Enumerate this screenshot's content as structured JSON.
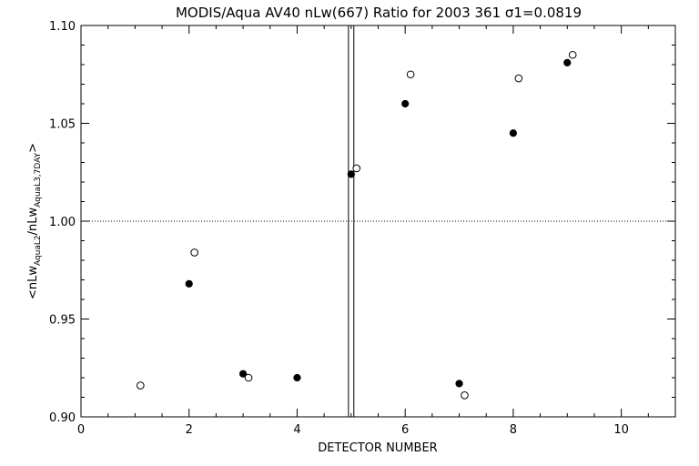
{
  "chart_data": {
    "type": "scatter",
    "title": "MODIS/Aqua AV40 nLw(667) Ratio for 2003 361 σ1=0.0819",
    "xlabel": "DETECTOR NUMBER",
    "ylabel": "<nLwAqua L2/nLwAqua L3 7DAY>",
    "ylabel_parts": {
      "open": "<nLw",
      "sub1": "AquaL2",
      "slash": "/nLw",
      "sub2": "AquaL3,7DAY",
      "close": ">"
    },
    "xlim": [
      0,
      11
    ],
    "ylim": [
      0.9,
      1.1
    ],
    "xticks": [
      "0",
      "2",
      "4",
      "6",
      "8",
      "10"
    ],
    "yticks": [
      "0.90",
      "0.95",
      "1.00",
      "1.05",
      "1.10"
    ],
    "reference_line_y": 1.0,
    "vertical_lines_x": [
      4.95,
      5.05
    ],
    "series": [
      {
        "marker": "filled-circle",
        "x": [
          2.0,
          3.0,
          4.0,
          5.0,
          6.0,
          7.0,
          8.0,
          9.0
        ],
        "y": [
          0.968,
          0.922,
          0.92,
          1.024,
          1.06,
          0.917,
          1.045,
          1.081
        ]
      },
      {
        "marker": "open-circle",
        "x": [
          1.1,
          2.1,
          3.1,
          5.1,
          6.1,
          7.1,
          8.1,
          9.1
        ],
        "y": [
          0.916,
          0.984,
          0.92,
          1.027,
          1.075,
          0.911,
          1.073,
          1.085
        ]
      }
    ]
  }
}
